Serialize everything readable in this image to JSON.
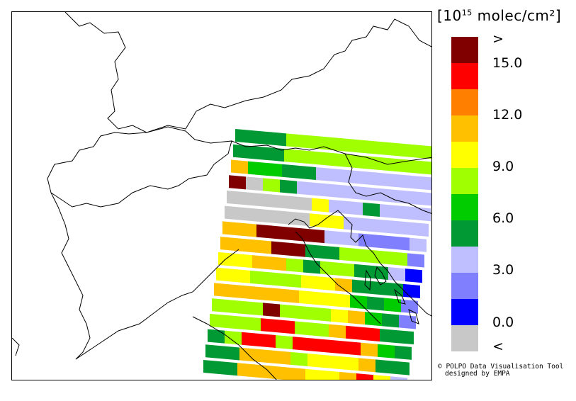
{
  "legend": {
    "title_base": "[10",
    "title_exp": "15",
    "title_unit": " molec/cm²]",
    "colors": [
      "#800000",
      "#ff0000",
      "#ff8000",
      "#ffc000",
      "#ffff00",
      "#a0ff00",
      "#00cc00",
      "#009933",
      "#bfbfff",
      "#8080ff",
      "#0000ff",
      "#c8c8c8"
    ],
    "labels": [
      ">",
      "15.0",
      "12.0",
      "9.0",
      "6.0",
      "3.0",
      "0.0",
      "<"
    ]
  },
  "credit": {
    "line1": "© POLPO Data Visualisation Tool",
    "line2": "designed by EMPA"
  },
  "swath": {
    "rows": [
      "gggaaaaaaaaa",
      "gggaaaaaaaaa",
      "OGGggPPPPPPP",
      "RCLgPPPPPPPP",
      "CCCCCYPPgPPP",
      "CCCCCYYPPPPP",
      "OORRRRPPMMMP",
      "OOORRggLLLLM",
      "YYOOLgLLggPB",
      "YYLLLYYOgggB",
      "OOOOOYYYGgGM",
      "LLLRLLLYOGgM",
      "LLLRRLLORRgg",
      "gLRRLRRRROGg",
      "ggOOOLYYYOgg",
      "ggOOOOYYORYP"
    ]
  }
}
